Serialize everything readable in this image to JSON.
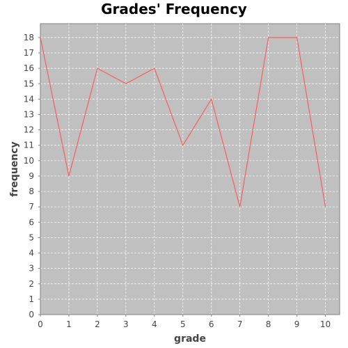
{
  "chart_data": {
    "type": "line",
    "title": "Grades' Frequency",
    "xlabel": "grade",
    "ylabel": "frequency",
    "x": [
      0,
      1,
      2,
      3,
      4,
      5,
      6,
      7,
      8,
      9,
      10
    ],
    "series": [
      {
        "values": [
          18,
          9,
          16,
          15,
          16,
          11,
          14,
          7,
          18,
          18,
          7
        ]
      }
    ],
    "xlim": [
      0,
      10.5
    ],
    "ylim": [
      0,
      18.9
    ],
    "xticks": [
      0,
      1,
      2,
      3,
      4,
      5,
      6,
      7,
      8,
      9,
      10
    ],
    "yticks": [
      0,
      1,
      2,
      3,
      4,
      5,
      6,
      7,
      8,
      9,
      10,
      11,
      12,
      13,
      14,
      15,
      16,
      17,
      18
    ],
    "grid": true,
    "legend": "none",
    "colors": {
      "plot_background": "#c0c0c0",
      "series_line": "#ff5555",
      "gridline": "#ffffff",
      "axis_line": "#808080",
      "tick_label": "#444444",
      "title": "#000000"
    }
  }
}
